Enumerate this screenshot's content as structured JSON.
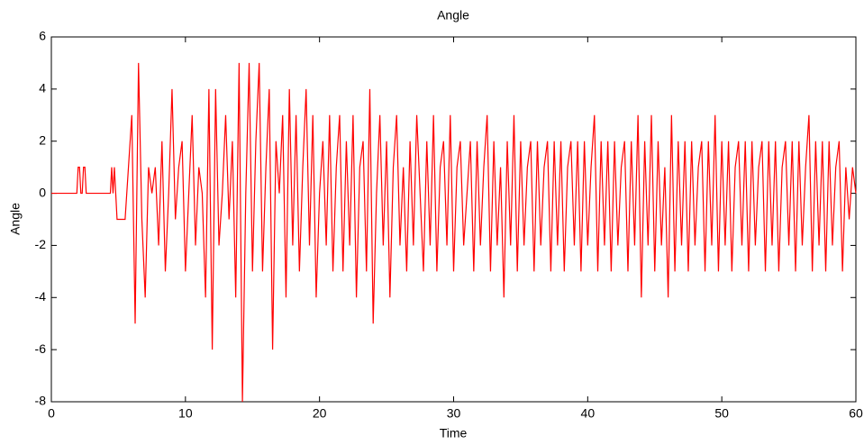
{
  "chart_data": {
    "type": "line",
    "title": "Angle",
    "x_label": "Time",
    "y_label": "Angle",
    "xlim": [
      0,
      60
    ],
    "xticks": [
      0,
      10,
      20,
      30,
      40,
      50,
      60
    ],
    "ylim": [
      -8,
      6
    ],
    "yticks": [
      -8,
      -6,
      -4,
      -2,
      0,
      2,
      4,
      6
    ],
    "grid": false,
    "x": [
      0,
      1.9,
      2,
      2.1,
      2.2,
      2.3,
      2.4,
      2.5,
      2.6,
      4.4,
      4.5,
      4.6,
      4.7,
      4.8,
      4.9,
      5.5,
      5.75,
      6,
      6.25,
      6.5,
      6.75,
      7,
      7.25,
      7.5,
      7.75,
      8,
      8.25,
      8.5,
      8.75,
      9,
      9.25,
      9.5,
      9.75,
      10,
      10.25,
      10.5,
      10.75,
      11,
      11.25,
      11.5,
      11.75,
      12,
      12.25,
      12.5,
      12.75,
      13,
      13.25,
      13.5,
      13.75,
      14,
      14.25,
      14.5,
      14.75,
      15,
      15.25,
      15.5,
      15.75,
      16,
      16.25,
      16.5,
      16.75,
      17,
      17.25,
      17.5,
      17.75,
      18,
      18.25,
      18.5,
      18.75,
      19,
      19.25,
      19.5,
      19.75,
      20,
      20.25,
      20.5,
      20.75,
      21,
      21.25,
      21.5,
      21.75,
      22,
      22.25,
      22.5,
      22.75,
      23,
      23.25,
      23.5,
      23.75,
      24,
      24.25,
      24.5,
      24.75,
      25,
      25.25,
      25.5,
      25.75,
      26,
      26.25,
      26.5,
      26.75,
      27,
      27.25,
      27.5,
      27.75,
      28,
      28.25,
      28.5,
      28.75,
      29,
      29.25,
      29.5,
      29.75,
      30,
      30.25,
      30.5,
      30.75,
      31,
      31.25,
      31.5,
      31.75,
      32,
      32.25,
      32.5,
      32.75,
      33,
      33.25,
      33.5,
      33.75,
      34,
      34.25,
      34.5,
      34.75,
      35,
      35.25,
      35.5,
      35.75,
      36,
      36.25,
      36.5,
      36.75,
      37,
      37.25,
      37.5,
      37.75,
      38,
      38.25,
      38.5,
      38.75,
      39,
      39.25,
      39.5,
      39.75,
      40,
      40.25,
      40.5,
      40.75,
      41,
      41.25,
      41.5,
      41.75,
      42,
      42.25,
      42.5,
      42.75,
      43,
      43.25,
      43.5,
      43.75,
      44,
      44.25,
      44.5,
      44.75,
      45,
      45.25,
      45.5,
      45.75,
      46,
      46.25,
      46.5,
      46.75,
      47,
      47.25,
      47.5,
      47.75,
      48,
      48.25,
      48.5,
      48.75,
      49,
      49.25,
      49.5,
      49.75,
      50,
      50.25,
      50.5,
      50.75,
      51,
      51.25,
      51.5,
      51.75,
      52,
      52.25,
      52.5,
      52.75,
      53,
      53.25,
      53.5,
      53.75,
      54,
      54.25,
      54.5,
      54.75,
      55,
      55.25,
      55.5,
      55.75,
      56,
      56.25,
      56.5,
      56.75,
      57,
      57.25,
      57.5,
      57.75,
      58,
      58.25,
      58.5,
      58.75,
      59,
      59.25,
      59.5,
      59.75,
      60
    ],
    "series": [
      {
        "name": "Angle",
        "color": "#ff0000",
        "values": [
          0,
          0,
          1,
          1,
          0,
          0,
          1,
          1,
          0,
          0,
          1,
          0,
          1,
          0,
          -1,
          -1,
          1,
          3,
          -5,
          5,
          -1,
          -4,
          1,
          0,
          1,
          -2,
          2,
          -3,
          0,
          4,
          -1,
          1,
          2,
          -3,
          0,
          3,
          -2,
          1,
          0,
          -4,
          4,
          -6,
          4,
          -2,
          0,
          3,
          -1,
          2,
          -4,
          5,
          -8,
          0,
          5,
          -3,
          2,
          5,
          -3,
          1,
          4,
          -6,
          2,
          0,
          3,
          -4,
          4,
          -2,
          3,
          -3,
          1,
          4,
          -2,
          3,
          -4,
          0,
          2,
          -2,
          3,
          -3,
          1,
          3,
          -3,
          2,
          -2,
          3,
          -4,
          1,
          2,
          -3,
          4,
          -5,
          0,
          3,
          -2,
          2,
          -4,
          1,
          3,
          -2,
          1,
          -3,
          2,
          -2,
          3,
          0,
          -3,
          2,
          -2,
          3,
          -3,
          1,
          2,
          -2,
          3,
          -3,
          1,
          2,
          -2,
          0,
          2,
          -3,
          2,
          -2,
          1,
          3,
          -3,
          2,
          -2,
          1,
          -4,
          2,
          -2,
          3,
          -3,
          2,
          -2,
          1,
          2,
          -3,
          2,
          -2,
          1,
          2,
          -3,
          2,
          -2,
          2,
          -3,
          1,
          2,
          -2,
          2,
          -3,
          2,
          -2,
          1,
          3,
          -3,
          2,
          -2,
          2,
          -3,
          2,
          -2,
          1,
          2,
          -3,
          2,
          -2,
          3,
          -4,
          2,
          -2,
          3,
          -3,
          2,
          -2,
          1,
          -4,
          3,
          -3,
          2,
          -2,
          2,
          -3,
          2,
          -2,
          1,
          2,
          -3,
          2,
          -2,
          3,
          -3,
          2,
          -2,
          2,
          -3,
          1,
          2,
          -2,
          2,
          -3,
          2,
          -2,
          1,
          2,
          -3,
          2,
          -2,
          2,
          -3,
          1,
          2,
          -2,
          2,
          -3,
          2,
          -2,
          1,
          3,
          -3,
          2,
          -2,
          2,
          -3,
          2,
          -2,
          1,
          2,
          -3,
          1,
          -1,
          1,
          0
        ]
      }
    ]
  }
}
